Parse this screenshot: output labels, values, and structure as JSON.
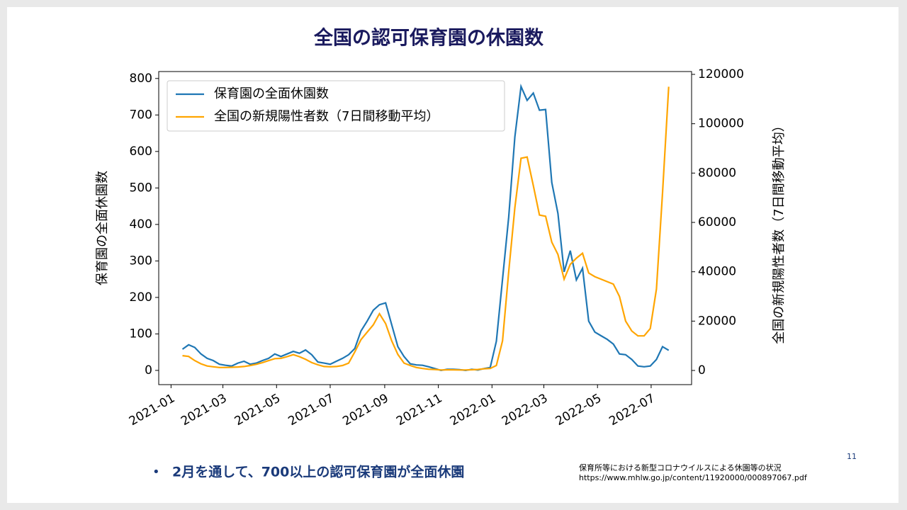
{
  "chart_data": {
    "type": "line",
    "title": "全国の認可保育園の休園数",
    "y_label": "保育園の全面休園数",
    "y2_label": "全国の新規陽性者数（7日間移動平均）",
    "x": [
      "2021-01-14",
      "2021-01-21",
      "2021-01-28",
      "2021-02-04",
      "2021-02-11",
      "2021-02-18",
      "2021-02-25",
      "2021-03-04",
      "2021-03-11",
      "2021-03-18",
      "2021-03-25",
      "2021-04-01",
      "2021-04-08",
      "2021-04-15",
      "2021-04-22",
      "2021-04-29",
      "2021-05-06",
      "2021-05-13",
      "2021-05-20",
      "2021-05-27",
      "2021-06-03",
      "2021-06-10",
      "2021-06-17",
      "2021-06-24",
      "2021-07-01",
      "2021-07-08",
      "2021-07-15",
      "2021-07-22",
      "2021-07-29",
      "2021-08-05",
      "2021-08-12",
      "2021-08-19",
      "2021-08-26",
      "2021-09-02",
      "2021-09-09",
      "2021-09-16",
      "2021-09-23",
      "2021-09-30",
      "2021-10-07",
      "2021-10-14",
      "2021-10-21",
      "2021-10-28",
      "2021-11-04",
      "2021-11-11",
      "2021-11-18",
      "2021-11-25",
      "2021-12-02",
      "2021-12-09",
      "2021-12-16",
      "2021-12-23",
      "2021-12-30",
      "2022-01-06",
      "2022-01-13",
      "2022-01-20",
      "2022-01-27",
      "2022-02-03",
      "2022-02-10",
      "2022-02-17",
      "2022-02-24",
      "2022-03-03",
      "2022-03-10",
      "2022-03-17",
      "2022-03-24",
      "2022-03-31",
      "2022-04-07",
      "2022-04-14",
      "2022-04-21",
      "2022-04-28",
      "2022-05-05",
      "2022-05-12",
      "2022-05-19",
      "2022-05-26",
      "2022-06-02",
      "2022-06-09",
      "2022-06-16",
      "2022-06-23",
      "2022-06-30",
      "2022-07-07",
      "2022-07-14",
      "2022-07-21"
    ],
    "series": [
      {
        "name": "保育園の全面休園数",
        "color": "#1f77b4",
        "values": [
          58,
          70,
          63,
          45,
          33,
          27,
          17,
          14,
          12,
          20,
          25,
          17,
          20,
          27,
          33,
          45,
          38,
          45,
          52,
          47,
          56,
          43,
          23,
          20,
          17,
          25,
          33,
          43,
          60,
          108,
          135,
          165,
          180,
          185,
          125,
          65,
          38,
          18,
          15,
          14,
          10,
          5,
          0,
          3,
          3,
          2,
          0,
          3,
          1,
          5,
          8,
          80,
          250,
          420,
          640,
          778,
          740,
          760,
          713,
          715,
          515,
          430,
          270,
          328,
          248,
          280,
          135,
          105,
          95,
          85,
          72,
          45,
          43,
          30,
          12,
          10,
          12,
          30,
          65,
          55
        ]
      },
      {
        "name": "全国の新規陽性者数（7日間移動平均）",
        "color": "#ffa500",
        "axis": "y2",
        "values": [
          6000,
          5700,
          4000,
          2700,
          1800,
          1500,
          1200,
          1200,
          1300,
          1400,
          1600,
          2000,
          2500,
          3200,
          4000,
          4800,
          4900,
          5600,
          6400,
          5600,
          4500,
          3200,
          2300,
          1600,
          1500,
          1600,
          2000,
          3000,
          7500,
          12500,
          15500,
          18500,
          23000,
          19000,
          12000,
          6500,
          3000,
          2000,
          1200,
          800,
          500,
          400,
          200,
          250,
          250,
          200,
          200,
          300,
          400,
          700,
          800,
          2000,
          12000,
          40000,
          66000,
          86000,
          86500,
          75000,
          63000,
          62500,
          52000,
          47000,
          37000,
          43000,
          45500,
          47500,
          39500,
          38000,
          37000,
          36000,
          35000,
          30000,
          20000,
          16000,
          14000,
          14000,
          17000,
          33000,
          72000,
          115000
        ]
      }
    ],
    "xlim": [
      "2020-12-18",
      "2022-08-16"
    ],
    "xticks": [
      {
        "value": "2021-01-01",
        "label": "2021-01"
      },
      {
        "value": "2021-03-01",
        "label": "2021-03"
      },
      {
        "value": "2021-05-01",
        "label": "2021-05"
      },
      {
        "value": "2021-07-01",
        "label": "2021-07"
      },
      {
        "value": "2021-09-01",
        "label": "2021-09"
      },
      {
        "value": "2021-11-01",
        "label": "2021-11"
      },
      {
        "value": "2022-01-01",
        "label": "2022-01"
      },
      {
        "value": "2022-03-01",
        "label": "2022-03"
      },
      {
        "value": "2022-05-01",
        "label": "2022-05"
      },
      {
        "value": "2022-07-01",
        "label": "2022-07"
      }
    ],
    "ylim": [
      -39,
      819
    ],
    "yticks": [
      0,
      100,
      200,
      300,
      400,
      500,
      600,
      700,
      800
    ],
    "y2lim": [
      -5740,
      121150
    ],
    "y2ticks": [
      0,
      20000,
      40000,
      60000,
      80000,
      100000,
      120000
    ],
    "legend": "upper left"
  },
  "bullet": "2月を通して、700以上の認可保育園が全面休園",
  "source": [
    "保育所等における新型コロナウイルスによる休園等の状況",
    "https://www.mhlw.go.jp/content/11920000/000897067.pdf"
  ],
  "page_number": "11"
}
